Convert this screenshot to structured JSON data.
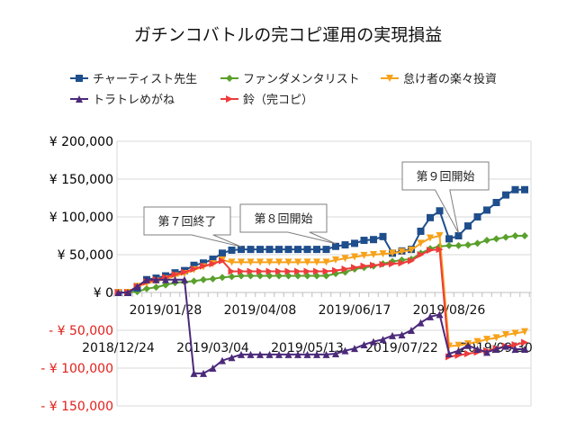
{
  "chart_data": {
    "type": "line",
    "title": "ガチンコバトルの完コピ運用の実現損益",
    "xlabel": "",
    "ylabel": "",
    "ylim": [
      -150000,
      200000
    ],
    "grid": true,
    "legend_position": "top",
    "y_tick_labels": [
      {
        "value": 200000,
        "label": "¥ 200,000",
        "color": "#000000"
      },
      {
        "value": 150000,
        "label": "¥ 150,000",
        "color": "#000000"
      },
      {
        "value": 100000,
        "label": "¥ 100,000",
        "color": "#000000"
      },
      {
        "value": 50000,
        "label": "¥ 50,000",
        "color": "#000000"
      },
      {
        "value": 0,
        "label": "¥ 0",
        "color": "#000000"
      },
      {
        "value": -50000,
        "label": "- ¥ 50,000",
        "color": "#e0201b"
      },
      {
        "value": -100000,
        "label": "- ¥ 100,000",
        "color": "#e0201b"
      },
      {
        "value": -150000,
        "label": "- ¥ 150,000",
        "color": "#e0201b"
      }
    ],
    "x_tick_labels": [
      "2018/12/24",
      "2019/01/28",
      "2019/03/04",
      "2019/04/08",
      "2019/05/13",
      "2019/06/17",
      "2019/07/22",
      "2019/08/26",
      "2019/09/30"
    ],
    "x": [
      "2018/12/24",
      "2018/12/31",
      "2019/01/07",
      "2019/01/14",
      "2019/01/21",
      "2019/01/28",
      "2019/02/04",
      "2019/02/11",
      "2019/02/18",
      "2019/02/25",
      "2019/03/04",
      "2019/03/11",
      "2019/03/18",
      "2019/03/25",
      "2019/04/01",
      "2019/04/08",
      "2019/04/15",
      "2019/04/22",
      "2019/04/29",
      "2019/05/06",
      "2019/05/13",
      "2019/05/20",
      "2019/05/27",
      "2019/06/03",
      "2019/06/10",
      "2019/06/17",
      "2019/06/24",
      "2019/07/01",
      "2019/07/08",
      "2019/07/15",
      "2019/07/22",
      "2019/07/29",
      "2019/08/05",
      "2019/08/12",
      "2019/08/19",
      "2019/08/26",
      "2019/09/02",
      "2019/09/09",
      "2019/09/16",
      "2019/09/23",
      "2019/09/30",
      "2019/10/07",
      "2019/10/14",
      "2019/10/21"
    ],
    "series": [
      {
        "name": "チャーティスト先生",
        "color": "#1f4e8c",
        "marker": "square",
        "values": [
          0,
          0,
          6000,
          17000,
          19000,
          22000,
          26000,
          29000,
          36000,
          39000,
          44000,
          52000,
          56000,
          57000,
          57000,
          57000,
          57000,
          57000,
          57000,
          57000,
          57000,
          57000,
          57000,
          61000,
          63000,
          65000,
          69000,
          70000,
          74000,
          52000,
          55000,
          57000,
          81000,
          99000,
          108000,
          71000,
          75000,
          88000,
          100000,
          109000,
          119000,
          129000,
          136000,
          136000
        ]
      },
      {
        "name": "ファンダメンタリスト",
        "color": "#5aa02c",
        "marker": "diamond",
        "values": [
          0,
          0,
          1000,
          5000,
          7000,
          10000,
          13000,
          14000,
          15000,
          17000,
          18000,
          20000,
          21000,
          22000,
          22000,
          22000,
          22000,
          22000,
          22000,
          22000,
          22000,
          22000,
          22000,
          25000,
          27000,
          31000,
          33000,
          35000,
          38000,
          41000,
          43000,
          44000,
          52000,
          58000,
          61000,
          62000,
          62000,
          63000,
          65000,
          69000,
          71000,
          73000,
          75000,
          75000
        ]
      },
      {
        "name": "怠け者の楽々投資",
        "color": "#f7a21b",
        "marker": "triangle-down",
        "values": [
          0,
          0,
          8000,
          12000,
          15000,
          18000,
          22000,
          25000,
          30000,
          34000,
          38000,
          43000,
          40000,
          40000,
          40000,
          40000,
          40000,
          40000,
          40000,
          40000,
          40000,
          40000,
          40000,
          43000,
          45000,
          47000,
          49000,
          50000,
          51000,
          52000,
          54000,
          56000,
          65000,
          72000,
          75000,
          -71000,
          -70000,
          -68000,
          -65000,
          -62000,
          -60000,
          -56000,
          -54000,
          -52000
        ]
      },
      {
        "name": "トラトレめがね",
        "color": "#4b2a7a",
        "marker": "triangle-up",
        "values": [
          0,
          0,
          8000,
          17000,
          17000,
          17000,
          17000,
          17000,
          -107000,
          -107000,
          -100000,
          -90000,
          -86000,
          -82000,
          -82000,
          -82000,
          -82000,
          -82000,
          -82000,
          -82000,
          -82000,
          -82000,
          -82000,
          -81000,
          -77000,
          -74000,
          -69000,
          -65000,
          -62000,
          -57000,
          -56000,
          -50000,
          -40000,
          -32000,
          -29000,
          -81000,
          -77000,
          -70000,
          -75000,
          -79000,
          -75000,
          -71000,
          -75000,
          -75000
        ]
      },
      {
        "name": "鈴（完コピ）",
        "color": "#ee3b3b",
        "marker": "triangle-right",
        "values": [
          0,
          0,
          8000,
          14000,
          17000,
          20000,
          24000,
          27000,
          31000,
          35000,
          38000,
          42000,
          28000,
          28000,
          28000,
          28000,
          28000,
          28000,
          28000,
          28000,
          28000,
          28000,
          28000,
          29000,
          31000,
          33000,
          35000,
          36000,
          37000,
          38000,
          39000,
          42000,
          50000,
          56000,
          57000,
          -85000,
          -83000,
          -81000,
          -79000,
          -77000,
          -74000,
          -71000,
          -69000,
          -66000
        ]
      }
    ],
    "annotations": [
      {
        "text": "第７回終了",
        "x": "2019/03/25",
        "series": "チャーティスト先生"
      },
      {
        "text": "第８回開始",
        "x": "2019/06/03",
        "series": "チャーティスト先生"
      },
      {
        "text": "第９回開始",
        "x": "2019/09/02",
        "series": "チャーティスト先生"
      }
    ]
  }
}
